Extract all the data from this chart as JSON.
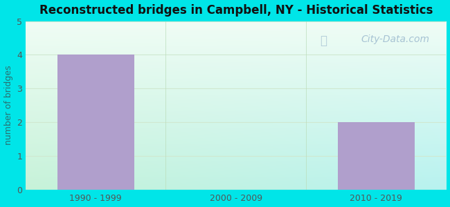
{
  "title": "Reconstructed bridges in Campbell, NY - Historical Statistics",
  "categories": [
    "1990 - 1999",
    "2000 - 2009",
    "2010 - 2019"
  ],
  "values": [
    4,
    0,
    2
  ],
  "bar_color": "#b09fcc",
  "ylabel": "number of bridges",
  "ylim": [
    0,
    5
  ],
  "yticks": [
    0,
    1,
    2,
    3,
    4,
    5
  ],
  "background_outer": "#00e5e8",
  "bg_top_color": "#f0faf5",
  "bg_bottom_left": "#c8f0d8",
  "bg_bottom_right": "#b8f0ee",
  "grid_color": "#d0e8d0",
  "title_color": "#111111",
  "axis_label_color": "#2a7070",
  "tick_label_color": "#555555",
  "watermark_text": "City-Data.com",
  "watermark_color": "#a0bdd0",
  "bar_width": 0.55
}
